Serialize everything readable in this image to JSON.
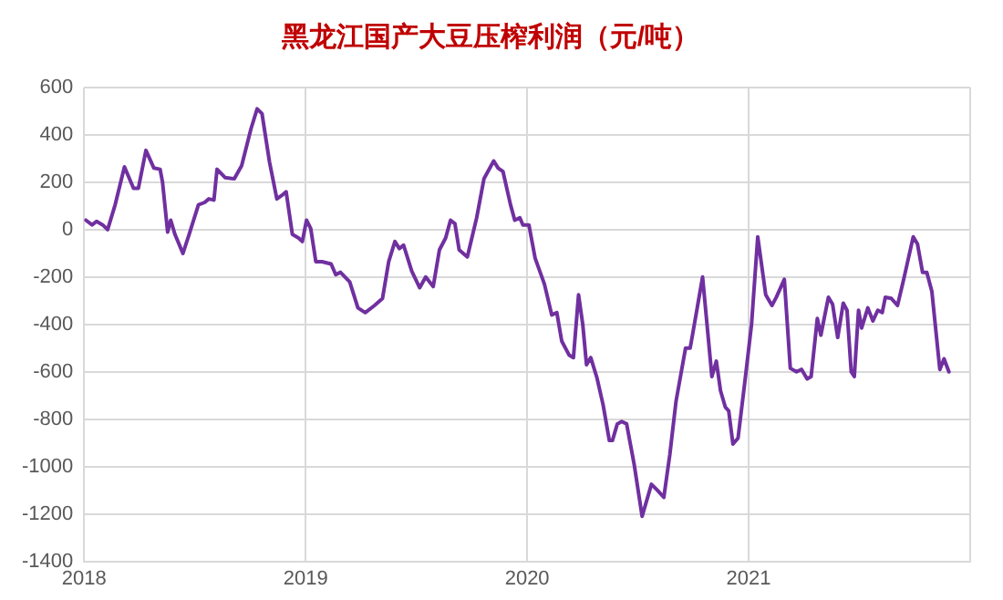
{
  "chart_data": {
    "type": "line",
    "title": "黑龙江国产大豆压榨利润（元/吨）",
    "x": [
      2018.008,
      2018.036,
      2018.056,
      2018.084,
      2018.106,
      2018.14,
      2018.182,
      2018.223,
      2018.245,
      2018.279,
      2018.315,
      2018.343,
      2018.354,
      2018.377,
      2018.391,
      2018.41,
      2018.446,
      2018.474,
      2018.516,
      2018.544,
      2018.563,
      2018.586,
      2018.6,
      2018.636,
      2018.678,
      2018.711,
      2018.753,
      2018.781,
      2018.803,
      2018.837,
      2018.87,
      2018.893,
      2018.912,
      2018.94,
      2018.968,
      2018.985,
      2019.004,
      2019.023,
      2019.046,
      2019.074,
      2019.115,
      2019.136,
      2019.157,
      2019.199,
      2019.236,
      2019.269,
      2019.311,
      2019.347,
      2019.375,
      2019.403,
      2019.423,
      2019.442,
      2019.479,
      2019.515,
      2019.542,
      2019.576,
      2019.604,
      2019.632,
      2019.654,
      2019.674,
      2019.693,
      2019.73,
      2019.772,
      2019.805,
      2019.849,
      2019.869,
      2019.891,
      2019.925,
      2019.944,
      2019.967,
      2019.981,
      2020.008,
      2020.036,
      2020.078,
      2020.111,
      2020.134,
      2020.156,
      2020.19,
      2020.209,
      2020.232,
      2020.251,
      2020.268,
      2020.287,
      2020.315,
      2020.343,
      2020.371,
      2020.385,
      2020.407,
      2020.427,
      2020.449,
      2020.483,
      2020.519,
      2020.561,
      2020.588,
      2020.617,
      2020.644,
      2020.672,
      2020.715,
      2020.736,
      2020.792,
      2020.834,
      2020.854,
      2020.873,
      2020.895,
      2020.91,
      2020.929,
      2020.952,
      2020.985,
      2021.013,
      2021.041,
      2021.077,
      2021.105,
      2021.125,
      2021.161,
      2021.188,
      2021.216,
      2021.239,
      2021.264,
      2021.282,
      2021.31,
      2021.326,
      2021.36,
      2021.379,
      2021.402,
      2021.427,
      2021.444,
      2021.463,
      2021.477,
      2021.496,
      2021.51,
      2021.538,
      2021.561,
      2021.583,
      2021.603,
      2021.617,
      2021.644,
      2021.672,
      2021.701,
      2021.743,
      2021.762,
      2021.785,
      2021.804,
      2021.827,
      2021.863,
      2021.882,
      2021.904
    ],
    "series": [
      {
        "color": "#7030a0",
        "values": [
          40,
          20,
          35,
          20,
          0,
          105,
          265,
          175,
          175,
          335,
          260,
          255,
          200,
          -10,
          40,
          -20,
          -100,
          -20,
          105,
          115,
          130,
          125,
          255,
          220,
          215,
          270,
          425,
          510,
          490,
          285,
          130,
          145,
          160,
          -20,
          -35,
          -50,
          40,
          5,
          -135,
          -135,
          -145,
          -190,
          -180,
          -220,
          -330,
          -350,
          -320,
          -290,
          -135,
          -50,
          -80,
          -65,
          -175,
          -245,
          -200,
          -240,
          -85,
          -35,
          40,
          25,
          -85,
          -115,
          50,
          215,
          290,
          260,
          245,
          105,
          40,
          50,
          20,
          20,
          -120,
          -230,
          -360,
          -350,
          -470,
          -530,
          -540,
          -275,
          -400,
          -570,
          -540,
          -625,
          -740,
          -890,
          -890,
          -820,
          -810,
          -820,
          -990,
          -1210,
          -1075,
          -1100,
          -1130,
          -950,
          -725,
          -500,
          -500,
          -200,
          -620,
          -555,
          -680,
          -750,
          -765,
          -905,
          -880,
          -625,
          -400,
          -30,
          -275,
          -320,
          -285,
          -210,
          -585,
          -600,
          -590,
          -630,
          -620,
          -375,
          -445,
          -285,
          -315,
          -455,
          -310,
          -340,
          -600,
          -620,
          -340,
          -415,
          -330,
          -385,
          -340,
          -350,
          -285,
          -290,
          -320,
          -205,
          -30,
          -60,
          -180,
          -180,
          -260,
          -590,
          -545,
          -600
        ]
      }
    ],
    "xlim": [
      2018,
      2022
    ],
    "xticks": [
      2018,
      2019,
      2020,
      2021
    ],
    "ylim": [
      -1400,
      600
    ],
    "yticks": [
      -1400,
      -1200,
      -1000,
      -800,
      -600,
      -400,
      -200,
      0,
      200,
      400,
      600
    ],
    "grid": true,
    "legend": false,
    "marker": "none",
    "line_style": "solid"
  }
}
